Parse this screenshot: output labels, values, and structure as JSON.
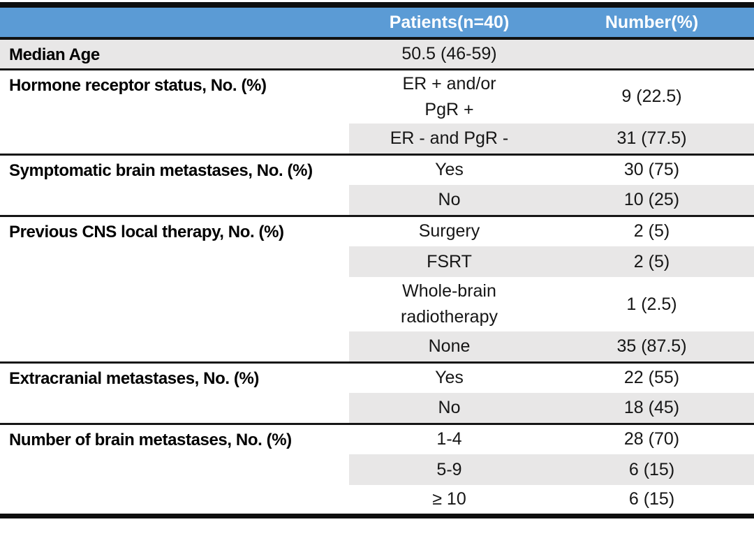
{
  "colors": {
    "header_blue": "#5b9bd5",
    "shade_gray": "#e8e7e7",
    "rule_black": "#111111"
  },
  "table": {
    "header": {
      "label": "",
      "patients": "Patients(n=40)",
      "number": "Number(%)"
    },
    "rows": [
      {
        "label": "Median Age",
        "value": "50.5 (46-59)",
        "number": ""
      },
      {
        "label": "Hormone receptor status, No. (%)",
        "value": "ER + and/or\nPgR +",
        "number": "9 (22.5)"
      },
      {
        "label": "",
        "value": "ER - and PgR -",
        "number": "31 (77.5)"
      },
      {
        "label": "Symptomatic brain metastases, No. (%)",
        "value": "Yes",
        "number": "30 (75)"
      },
      {
        "label": "",
        "value": "No",
        "number": "10 (25)"
      },
      {
        "label": "Previous CNS local therapy, No. (%)",
        "value": "Surgery",
        "number": "2 (5)"
      },
      {
        "label": "",
        "value": "FSRT",
        "number": "2 (5)"
      },
      {
        "label": "",
        "value": "Whole-brain\nradiotherapy",
        "number": "1 (2.5)"
      },
      {
        "label": "",
        "value": "None",
        "number": "35 (87.5)"
      },
      {
        "label": "Extracranial metastases, No. (%)",
        "value": "Yes",
        "number": "22 (55)"
      },
      {
        "label": "",
        "value": "No",
        "number": "18 (45)"
      },
      {
        "label": "Number of brain metastases, No. (%)",
        "value": "1-4",
        "number": "28 (70)"
      },
      {
        "label": "",
        "value": "5-9",
        "number": "6 (15)"
      },
      {
        "label": "",
        "value": "≥ 10",
        "number": "6 (15)"
      }
    ]
  }
}
